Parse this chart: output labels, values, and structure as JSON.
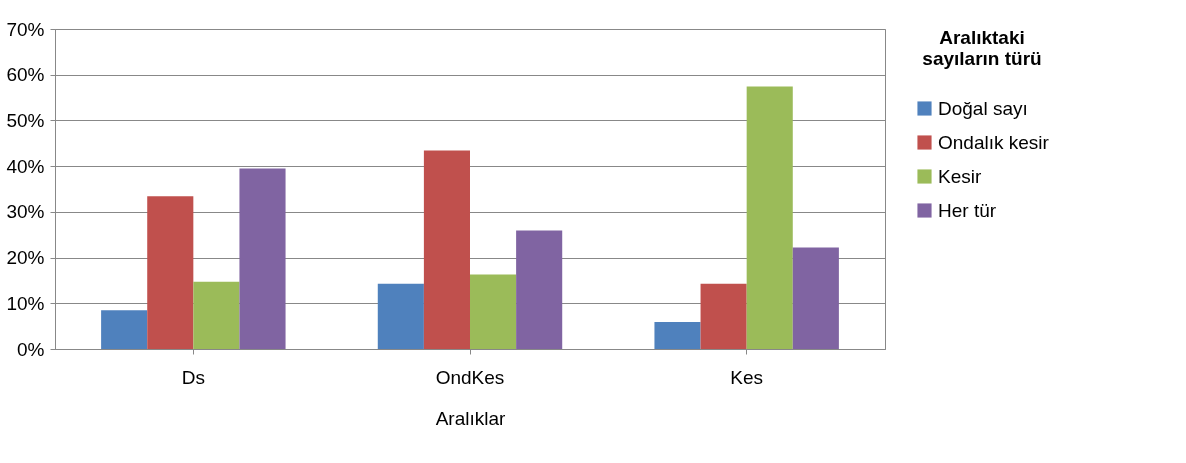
{
  "chart_data": {
    "type": "bar",
    "xlabel": "Aralıklar",
    "legend_title": "Aralıktaki sayıların türü",
    "categories": [
      "Ds",
      "OndKes",
      "Kes"
    ],
    "series": [
      {
        "name": "Doğal sayı",
        "color": "#4f81bd",
        "values": [
          8.5,
          14.3,
          5.9
        ]
      },
      {
        "name": "Ondalık kesir",
        "color": "#c0504d",
        "values": [
          33.4,
          43.4,
          14.3
        ]
      },
      {
        "name": "Kesir",
        "color": "#9bbb59",
        "values": [
          14.7,
          16.3,
          57.4
        ]
      },
      {
        "name": "Her tür",
        "color": "#8064a2",
        "values": [
          39.5,
          25.9,
          22.2
        ]
      }
    ],
    "ylim": [
      0,
      70
    ],
    "yticks": [
      {
        "value": 0,
        "label": "0%"
      },
      {
        "value": 10,
        "label": "10%"
      },
      {
        "value": 20,
        "label": "20%"
      },
      {
        "value": 30,
        "label": "30%"
      },
      {
        "value": 40,
        "label": "40%"
      },
      {
        "value": 50,
        "label": "50%"
      },
      {
        "value": 60,
        "label": "60%"
      },
      {
        "value": 70,
        "label": "70%"
      }
    ],
    "grid": "y",
    "legend": "right"
  }
}
